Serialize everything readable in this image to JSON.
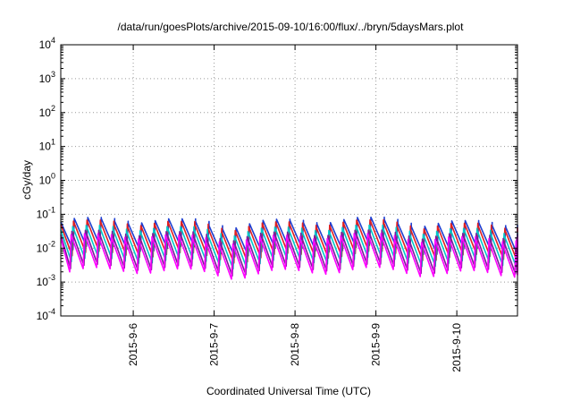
{
  "chart_data": {
    "type": "line",
    "title": "/data/run/goesPlots/archive/2015-09-10/16:00/flux/../bryn/5daysMars.plot",
    "xlabel": "Coordinated Universal Time (UTC)",
    "ylabel": "cGy/day",
    "y_scale": "log",
    "ylim": [
      0.0001,
      10000
    ],
    "xlim": [
      "2015-09-05T02:30",
      "2015-09-10T18:00"
    ],
    "grid": true,
    "legend": "none",
    "y_ticks": [
      {
        "base": "10",
        "exp": "-4",
        "value": 0.0001
      },
      {
        "base": "10",
        "exp": "-3",
        "value": 0.001
      },
      {
        "base": "10",
        "exp": "-2",
        "value": 0.01
      },
      {
        "base": "10",
        "exp": "-1",
        "value": 0.1
      },
      {
        "base": "10",
        "exp": "0",
        "value": 1
      },
      {
        "base": "10",
        "exp": "1",
        "value": 10
      },
      {
        "base": "10",
        "exp": "2",
        "value": 100
      },
      {
        "base": "10",
        "exp": "3",
        "value": 1000
      },
      {
        "base": "10",
        "exp": "4",
        "value": 10000
      }
    ],
    "x_ticks": [
      {
        "label": "2015-9-6",
        "value": "2015-09-06T00:00"
      },
      {
        "label": "2015-9-7",
        "value": "2015-09-07T00:00"
      },
      {
        "label": "2015-9-8",
        "value": "2015-09-08T00:00"
      },
      {
        "label": "2015-9-9",
        "value": "2015-09-09T00:00"
      },
      {
        "label": "2015-9-10",
        "value": "2015-09-10T00:00"
      }
    ],
    "sawtooth_period_hours": 4,
    "series": [
      {
        "color": "#1f3fd0",
        "peak": 0.06,
        "trough": 0.009
      },
      {
        "color": "#e02020",
        "peak": 0.05,
        "trough": 0.006
      },
      {
        "color": "#00c8c8",
        "peak": 0.035,
        "trough": 0.004
      },
      {
        "color": "#7a1a9a",
        "peak": 0.025,
        "trough": 0.0025
      },
      {
        "color": "#ff00ff",
        "peak": 0.02,
        "trough": 0.002
      }
    ]
  }
}
